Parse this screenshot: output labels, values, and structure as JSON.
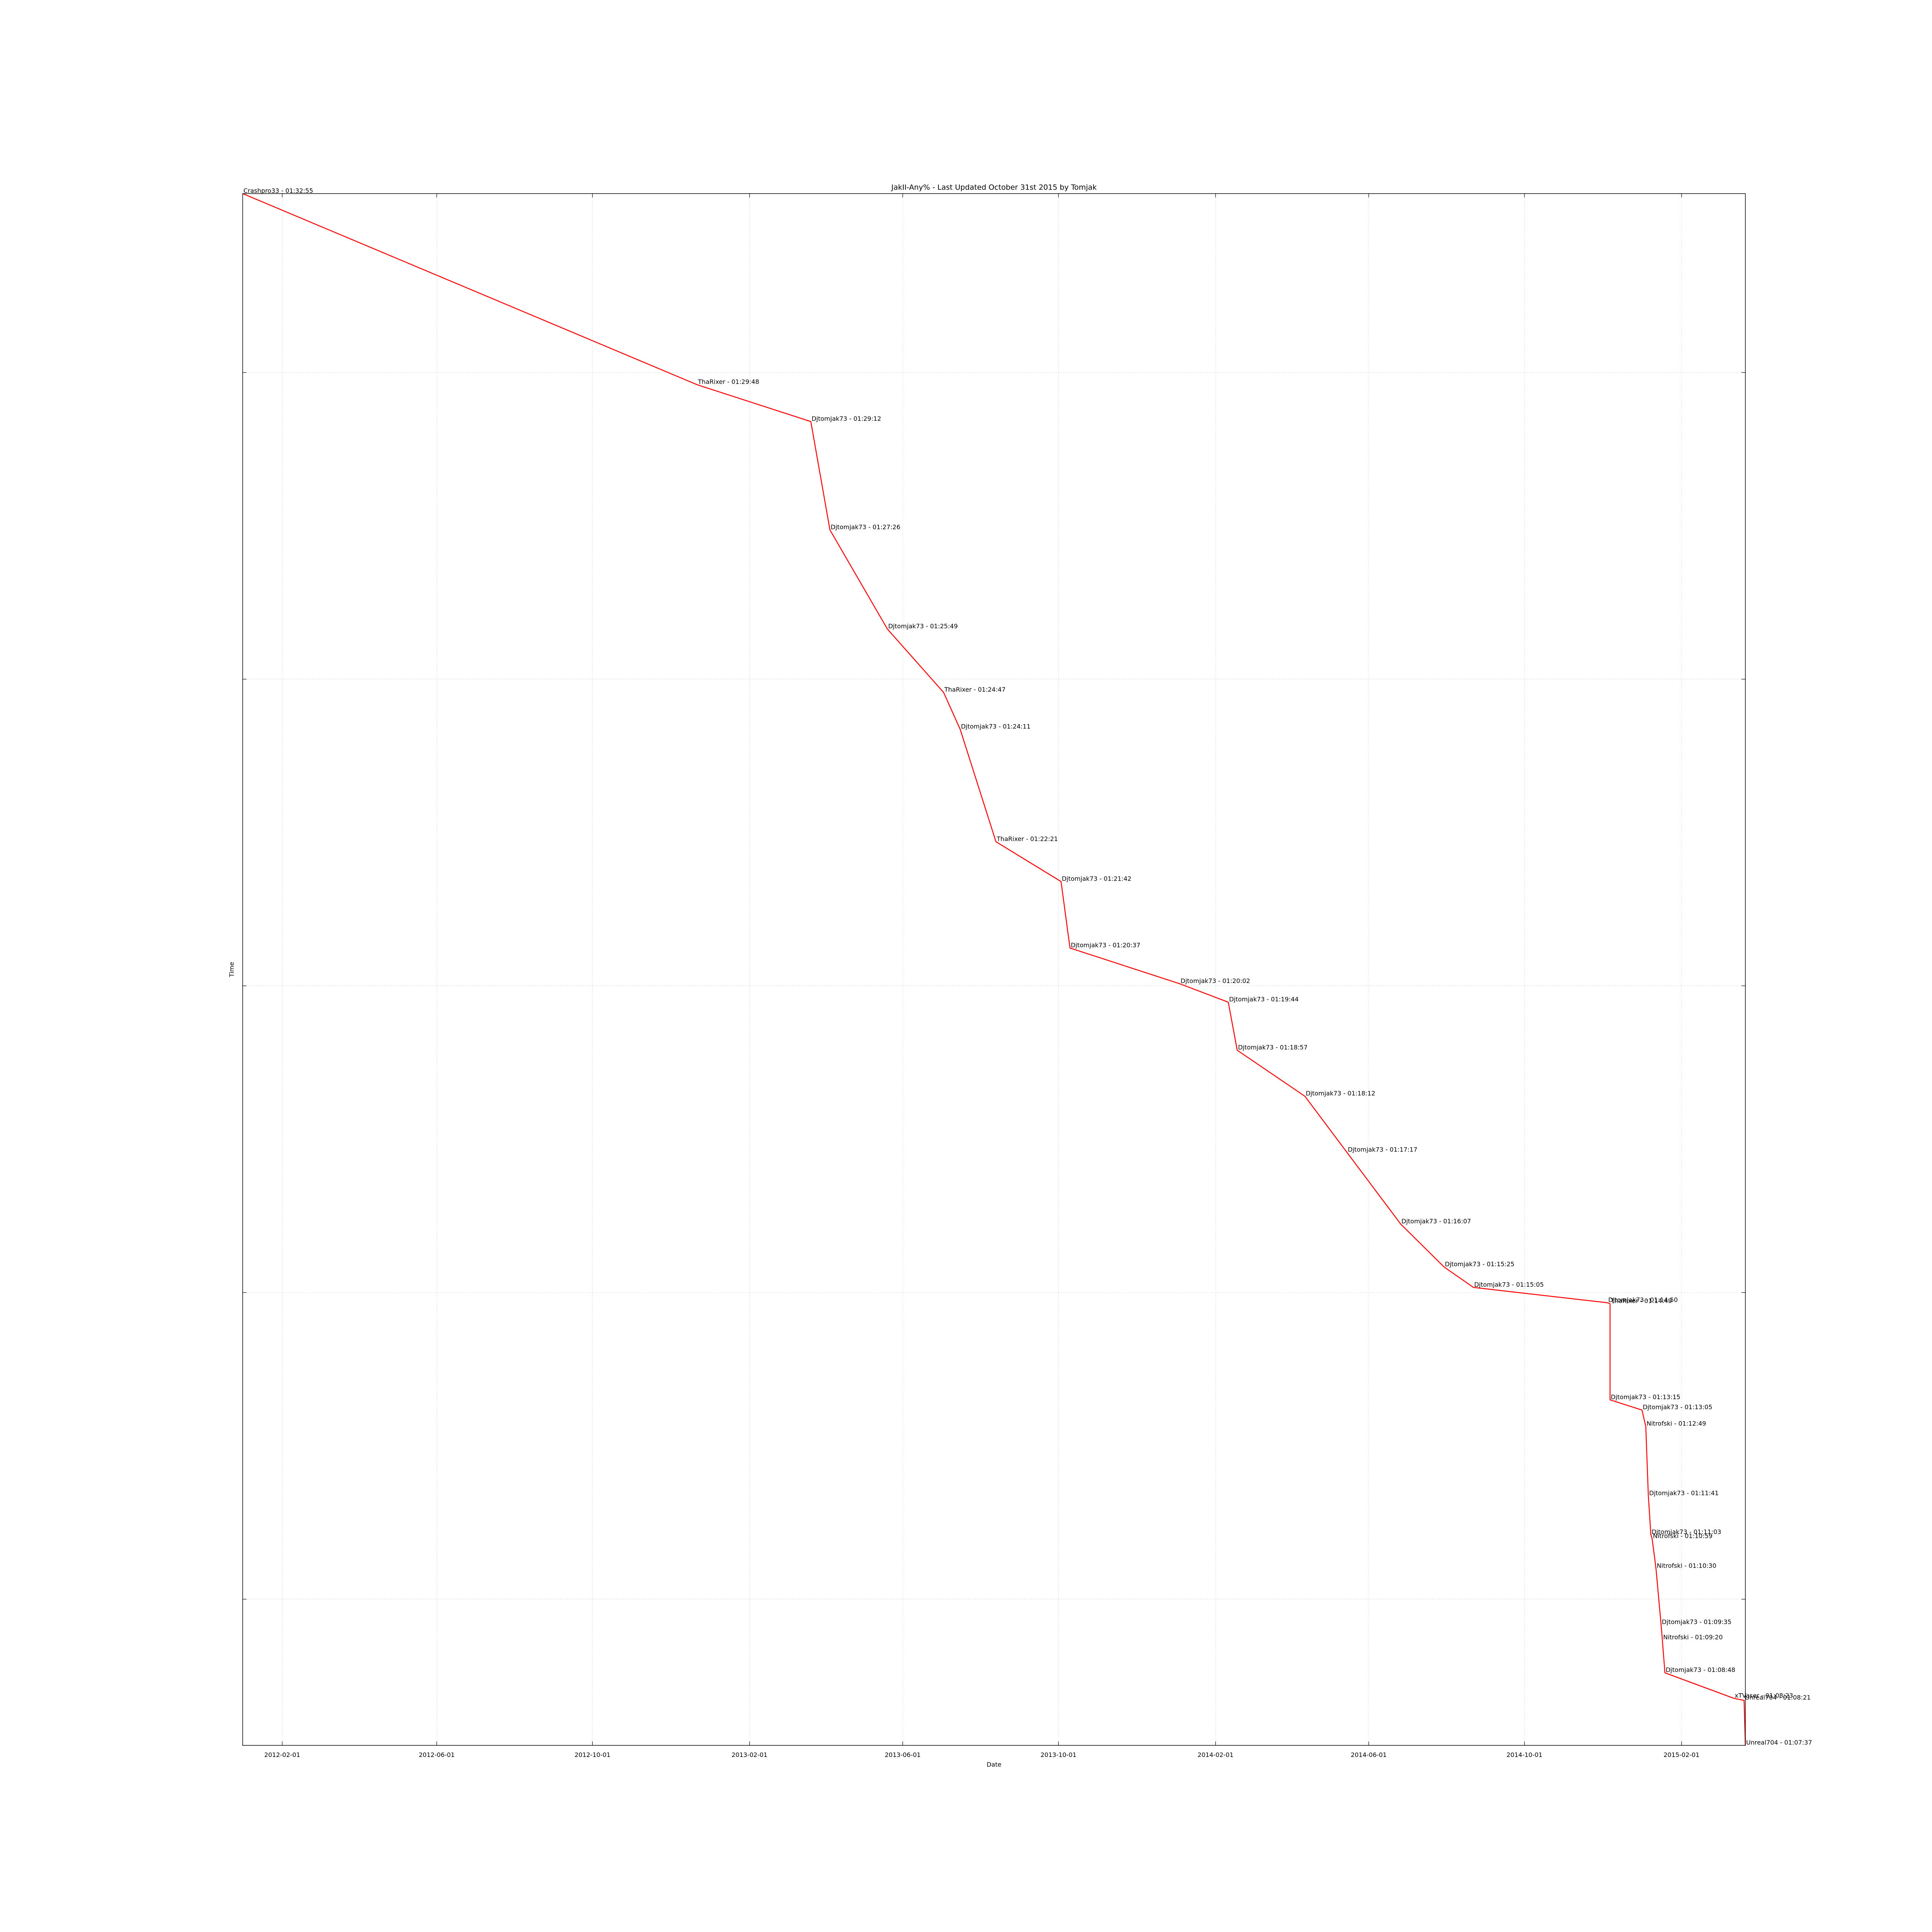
{
  "chart_data": {
    "type": "line",
    "title": "JakII-Any% - Last Updated October 31st 2015 by Tomjak",
    "xlabel": "Date",
    "ylabel": "Time",
    "x_tick_labels": [
      "2012-02-01",
      "2012-06-01",
      "2012-10-01",
      "2013-02-01",
      "2013-06-01",
      "2013-10-01",
      "2014-02-01",
      "2014-06-01",
      "2014-10-01",
      "2015-02-01"
    ],
    "xlim": [
      "2012-01-01",
      "2015-03-23"
    ],
    "ylim": [
      "01:07:37",
      "01:32:55"
    ],
    "y_gridlines": [
      "01:30:00",
      "01:25:00",
      "01:20:00",
      "01:15:00",
      "01:10:00"
    ],
    "grid": true,
    "series_color": "#ff0000",
    "points": [
      {
        "date": "2012-01-01",
        "time": "01:32:55",
        "label": "Crashpro33 - 01:32:55"
      },
      {
        "date": "2012-12-22",
        "time": "01:29:48",
        "label": "ThaRixer - 01:29:48"
      },
      {
        "date": "2013-03-21",
        "time": "01:29:12",
        "label": "Djtomjak73 - 01:29:12"
      },
      {
        "date": "2013-04-05",
        "time": "01:27:26",
        "label": "Djtomjak73 - 01:27:26"
      },
      {
        "date": "2013-05-20",
        "time": "01:25:49",
        "label": "Djtomjak73 - 01:25:49"
      },
      {
        "date": "2013-07-03",
        "time": "01:24:47",
        "label": "ThaRixer - 01:24:47"
      },
      {
        "date": "2013-07-16",
        "time": "01:24:11",
        "label": "Djtomjak73 - 01:24:11"
      },
      {
        "date": "2013-08-13",
        "time": "01:22:21",
        "label": "ThaRixer - 01:22:21"
      },
      {
        "date": "2013-10-03",
        "time": "01:21:42",
        "label": "Djtomjak73 - 01:21:42"
      },
      {
        "date": "2013-10-10",
        "time": "01:20:37",
        "label": "Djtomjak73 - 01:20:37"
      },
      {
        "date": "2014-01-04",
        "time": "01:20:02",
        "label": "Djtomjak73 - 01:20:02"
      },
      {
        "date": "2014-02-11",
        "time": "01:19:44",
        "label": "Djtomjak73 - 01:19:44"
      },
      {
        "date": "2014-02-18",
        "time": "01:18:57",
        "label": "Djtomjak73 - 01:18:57"
      },
      {
        "date": "2014-04-12",
        "time": "01:18:12",
        "label": "Djtomjak73 - 01:18:12"
      },
      {
        "date": "2014-05-15",
        "time": "01:17:17",
        "label": "Djtomjak73 - 01:17:17"
      },
      {
        "date": "2014-06-26",
        "time": "01:16:07",
        "label": "Djtomjak73 - 01:16:07"
      },
      {
        "date": "2014-07-30",
        "time": "01:15:25",
        "label": "Djtomjak73 - 01:15:25"
      },
      {
        "date": "2014-08-22",
        "time": "01:15:05",
        "label": "Djtomjak73 - 01:15:05"
      },
      {
        "date": "2014-12-05",
        "time": "01:14:50",
        "label": "Djtomjak73 - 01:14:50"
      },
      {
        "date": "2014-12-07",
        "time": "01:14:49",
        "label": "ThaRixer - 01:14:49"
      },
      {
        "date": "2014-12-07",
        "time": "01:13:15",
        "label": "Djtomjak73 - 01:13:15"
      },
      {
        "date": "2015-01-01",
        "time": "01:13:05",
        "label": "Djtomjak73 - 01:13:05"
      },
      {
        "date": "2015-01-04",
        "time": "01:12:49",
        "label": "Nitrofski - 01:12:49"
      },
      {
        "date": "2015-01-06",
        "time": "01:11:41",
        "label": "Djtomjak73 - 01:11:41"
      },
      {
        "date": "2015-01-08",
        "time": "01:11:03",
        "label": "Djtomjak73 - 01:11:03"
      },
      {
        "date": "2015-01-09",
        "time": "01:10:59",
        "label": "Nitrofski - 01:10:59"
      },
      {
        "date": "2015-01-12",
        "time": "01:10:30",
        "label": "Nitrofski - 01:10:30"
      },
      {
        "date": "2015-01-16",
        "time": "01:09:35",
        "label": "Djtomjak73 - 01:09:35"
      },
      {
        "date": "2015-01-17",
        "time": "01:09:20",
        "label": "Nitrofski - 01:09:20"
      },
      {
        "date": "2015-01-19",
        "time": "01:08:48",
        "label": "Djtomjak73 - 01:08:48"
      },
      {
        "date": "2015-03-14",
        "time": "01:08:23",
        "label": "xTVaser - 01:08:23"
      },
      {
        "date": "2015-03-22",
        "time": "01:08:21",
        "label": "Unreal704 - 01:08:21"
      },
      {
        "date": "2015-03-23",
        "time": "01:07:37",
        "label": "Unreal704 - 01:07:37"
      }
    ]
  }
}
